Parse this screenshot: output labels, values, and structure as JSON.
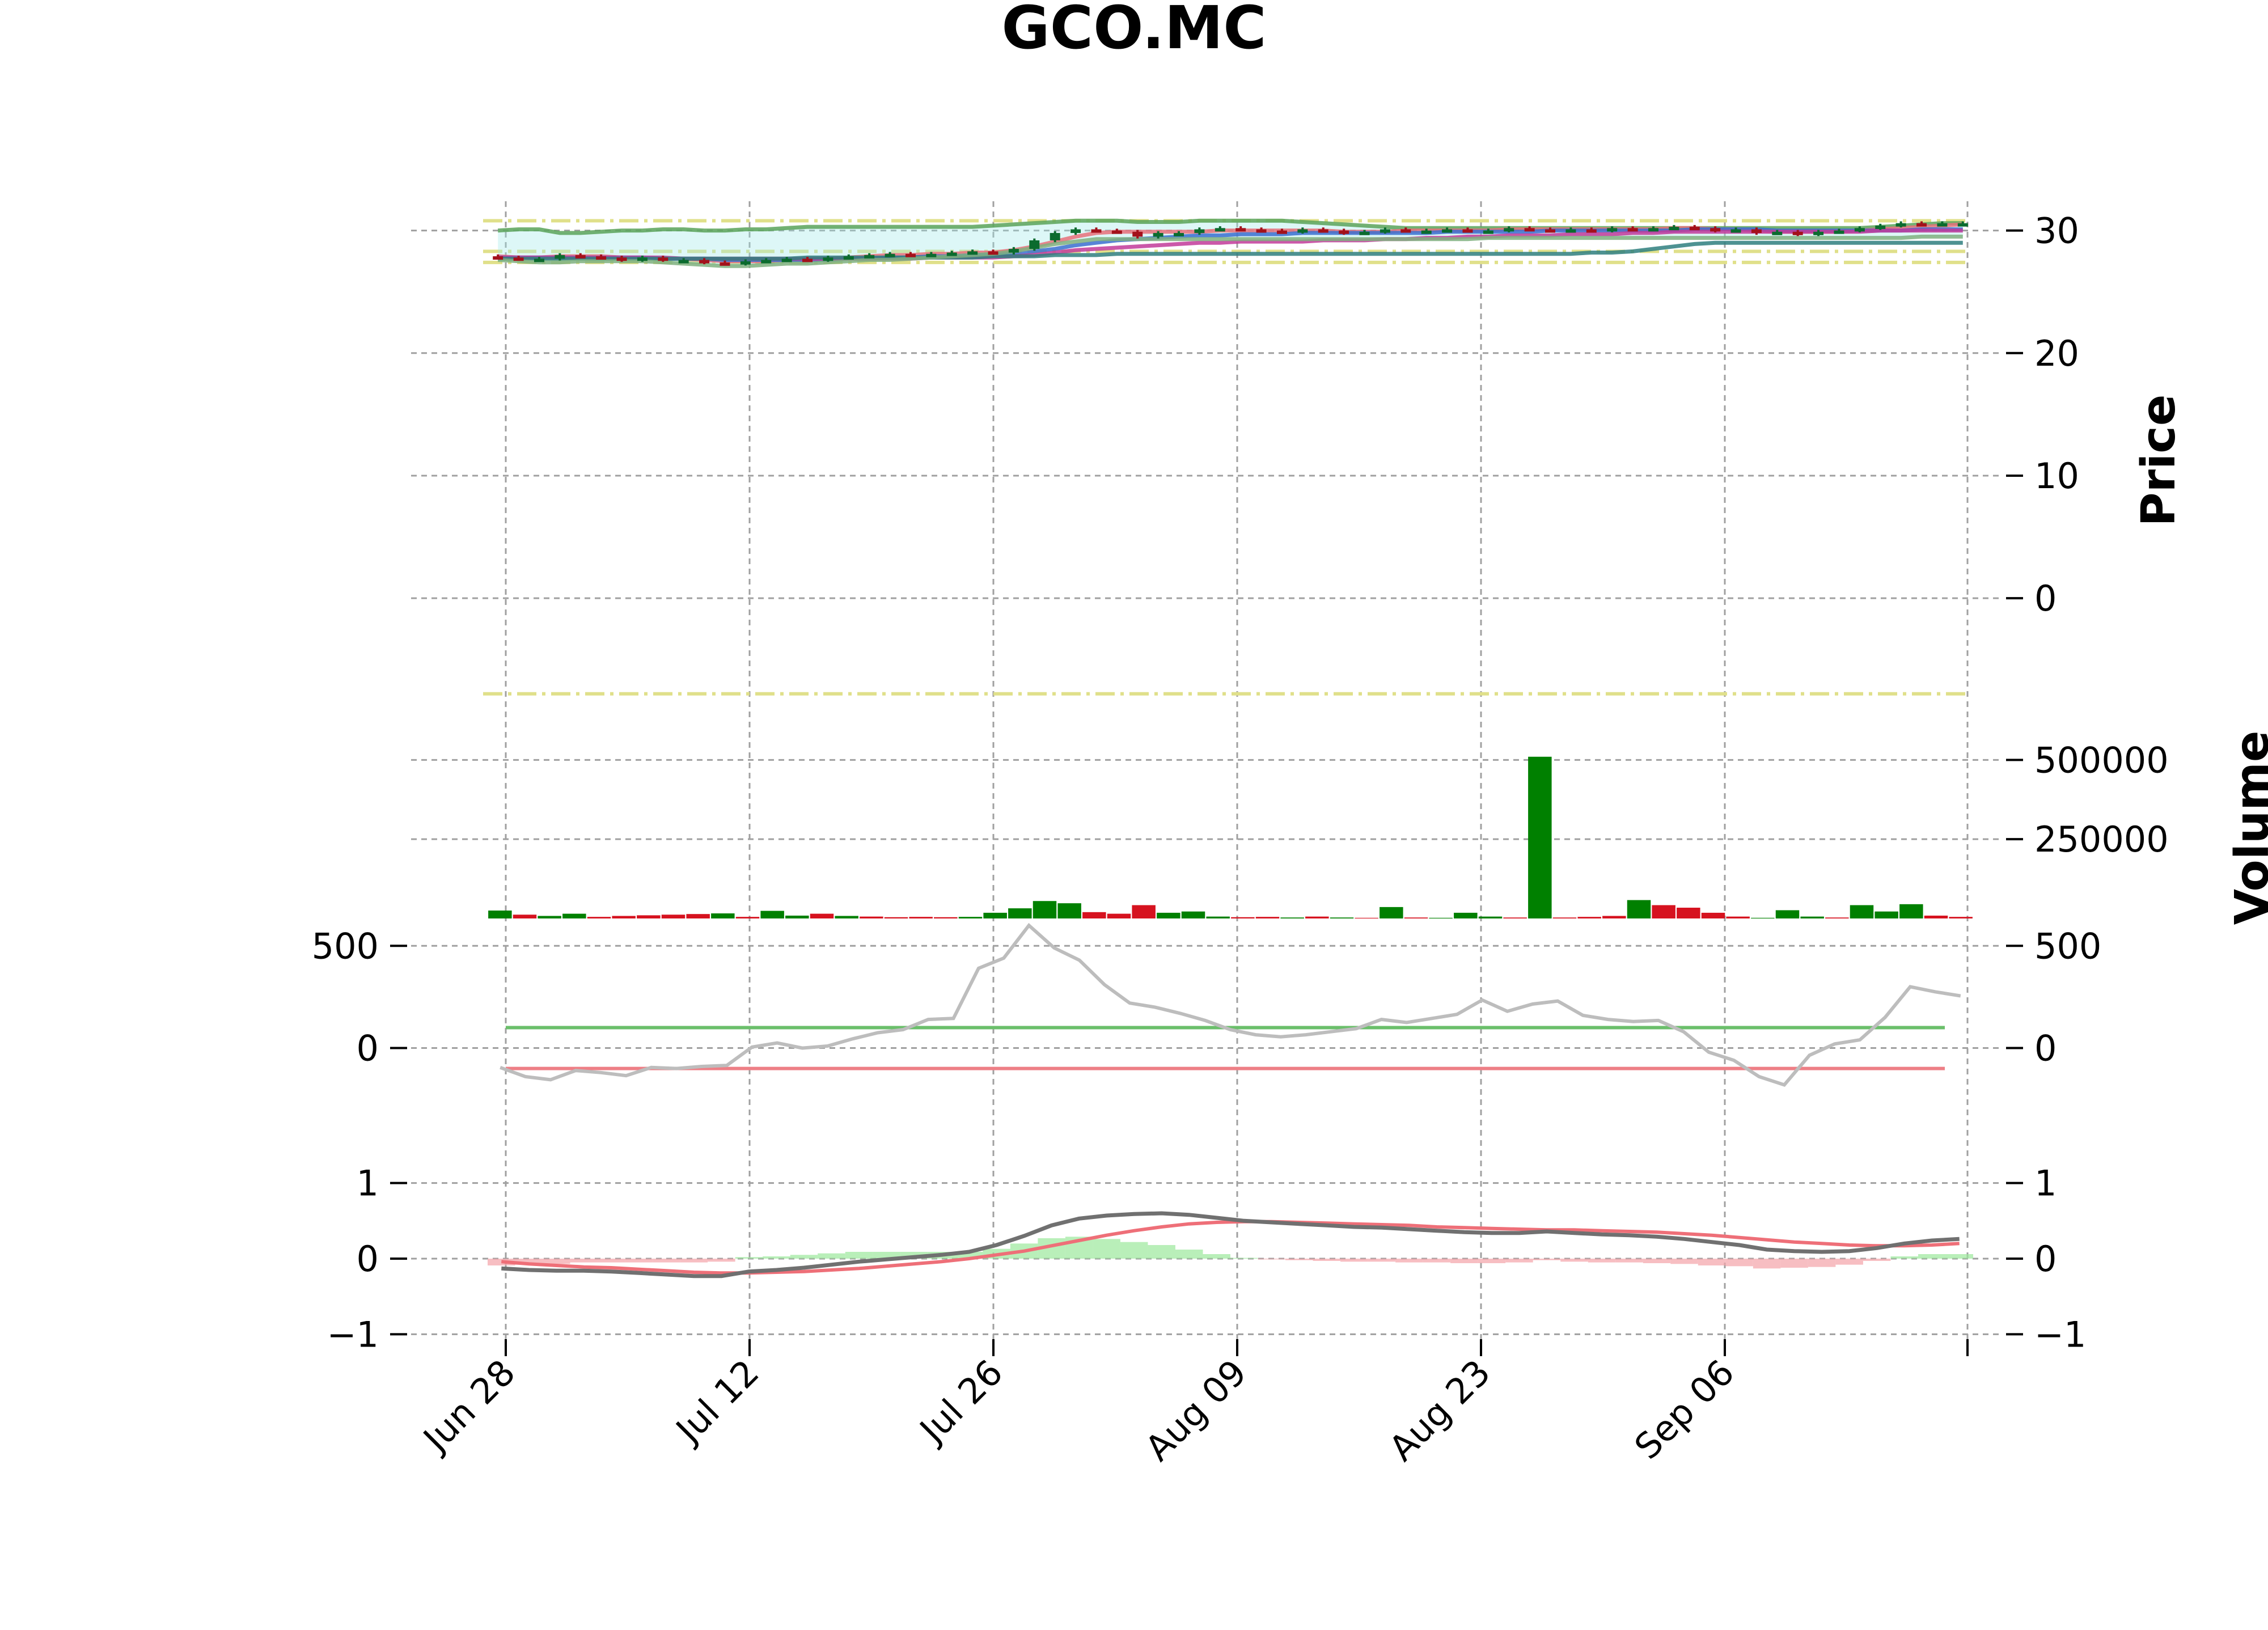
{
  "chart_data": {
    "type": "candlestick",
    "title": "GCO.MC",
    "x_tick_labels": [
      "Jun 28",
      "Jul 12",
      "Jul 26",
      "Aug 09",
      "Aug 23",
      "Sep 06"
    ],
    "price_panel": {
      "ylabel": "Price",
      "ylim": [
        -3,
        31
      ],
      "yticks": [
        0,
        10,
        20,
        30
      ],
      "close": [
        27.8,
        27.7,
        27.7,
        28.0,
        27.9,
        27.8,
        27.6,
        27.8,
        27.6,
        27.6,
        27.4,
        27.3,
        27.5,
        27.6,
        27.7,
        27.6,
        27.8,
        27.9,
        28.0,
        28.1,
        28.0,
        28.1,
        28.2,
        28.3,
        28.2,
        28.5,
        29.2,
        29.8,
        30.1,
        30.0,
        29.9,
        29.5,
        29.8,
        29.8,
        30.1,
        30.2,
        30.1,
        30.0,
        29.9,
        30.1,
        30.0,
        29.8,
        29.9,
        30.1,
        30.0,
        30.0,
        30.1,
        30.0,
        30.0,
        30.2,
        30.1,
        30.0,
        30.1,
        30.0,
        30.2,
        30.1,
        30.2,
        30.3,
        30.2,
        30.0,
        30.1,
        29.8,
        29.9,
        29.7,
        29.9,
        30.0,
        30.2,
        30.4,
        30.6,
        30.5,
        30.6,
        30.6
      ],
      "overlay_lines": [
        {
          "name": "upper-band",
          "color": "#5aa35a",
          "values": [
            30.0,
            30.1,
            30.1,
            29.8,
            29.8,
            29.9,
            30.0,
            30.0,
            30.1,
            30.1,
            30.0,
            30.0,
            30.1,
            30.1,
            30.2,
            30.3,
            30.3,
            30.3,
            30.3,
            30.3,
            30.3,
            30.3,
            30.3,
            30.3,
            30.4,
            30.5,
            30.6,
            30.7,
            30.8,
            30.8,
            30.8,
            30.7,
            30.7,
            30.7,
            30.8,
            30.8,
            30.8,
            30.8,
            30.8,
            30.7,
            30.6,
            30.5,
            30.4,
            30.3,
            30.2,
            30.2,
            30.2,
            30.2,
            30.2,
            30.2,
            30.2,
            30.2,
            30.2,
            30.2,
            30.2,
            30.2,
            30.2,
            30.2,
            30.2,
            30.2,
            30.2,
            30.2,
            30.2,
            30.2,
            30.2,
            30.2,
            30.2,
            30.3,
            30.4,
            30.5,
            30.6,
            30.6
          ]
        },
        {
          "name": "fast-ma",
          "color": "#e8707a",
          "values": [
            27.9,
            27.8,
            27.8,
            27.9,
            27.9,
            27.9,
            27.8,
            27.8,
            27.7,
            27.7,
            27.6,
            27.5,
            27.5,
            27.5,
            27.6,
            27.6,
            27.7,
            27.8,
            27.9,
            28.0,
            28.0,
            28.1,
            28.1,
            28.2,
            28.2,
            28.4,
            28.7,
            29.1,
            29.5,
            29.8,
            29.9,
            29.9,
            29.9,
            29.9,
            29.9,
            30.0,
            30.0,
            30.0,
            30.0,
            30.0,
            30.0,
            29.9,
            29.9,
            29.9,
            30.0,
            30.0,
            30.0,
            30.0,
            30.0,
            30.1,
            30.1,
            30.1,
            30.1,
            30.1,
            30.1,
            30.1,
            30.1,
            30.2,
            30.2,
            30.1,
            30.1,
            30.0,
            29.9,
            29.9,
            29.9,
            29.9,
            30.0,
            30.1,
            30.2,
            30.3,
            30.4,
            30.5
          ]
        },
        {
          "name": "mid-ma",
          "color": "#3a6fd0",
          "values": [
            27.8,
            27.8,
            27.8,
            27.8,
            27.8,
            27.8,
            27.8,
            27.8,
            27.7,
            27.7,
            27.7,
            27.6,
            27.6,
            27.6,
            27.6,
            27.6,
            27.6,
            27.7,
            27.7,
            27.8,
            27.8,
            27.9,
            27.9,
            28.0,
            28.0,
            28.1,
            28.3,
            28.5,
            28.8,
            29.0,
            29.2,
            29.3,
            29.4,
            29.5,
            29.6,
            29.6,
            29.7,
            29.7,
            29.7,
            29.8,
            29.8,
            29.8,
            29.8,
            29.8,
            29.8,
            29.8,
            29.9,
            29.9,
            29.9,
            29.9,
            29.9,
            30.0,
            30.0,
            30.0,
            30.0,
            30.0,
            30.0,
            30.0,
            30.1,
            30.1,
            30.1,
            30.1,
            30.0,
            30.0,
            30.0,
            30.0,
            30.0,
            30.0,
            30.0,
            30.1,
            30.1,
            30.1
          ]
        },
        {
          "name": "slow-ma",
          "color": "#c23b9a",
          "values": [
            27.8,
            27.8,
            27.8,
            27.8,
            27.8,
            27.8,
            27.8,
            27.8,
            27.8,
            27.7,
            27.7,
            27.7,
            27.7,
            27.7,
            27.7,
            27.7,
            27.7,
            27.7,
            27.7,
            27.7,
            27.7,
            27.8,
            27.8,
            27.8,
            27.8,
            27.9,
            28.0,
            28.2,
            28.4,
            28.5,
            28.6,
            28.7,
            28.8,
            28.9,
            29.0,
            29.0,
            29.1,
            29.1,
            29.1,
            29.1,
            29.2,
            29.2,
            29.2,
            29.3,
            29.3,
            29.4,
            29.4,
            29.5,
            29.5,
            29.6,
            29.6,
            29.6,
            29.7,
            29.7,
            29.7,
            29.8,
            29.8,
            29.9,
            29.9,
            29.9,
            29.9,
            29.9,
            29.9,
            29.9,
            29.9,
            29.9,
            29.9,
            30.0,
            30.0,
            30.0,
            30.0,
            30.0
          ]
        },
        {
          "name": "long-ma",
          "color": "#2f7f7f",
          "values": [
            27.7,
            27.7,
            27.7,
            27.7,
            27.7,
            27.7,
            27.7,
            27.7,
            27.7,
            27.7,
            27.7,
            27.7,
            27.7,
            27.7,
            27.7,
            27.8,
            27.8,
            27.8,
            27.8,
            27.8,
            27.8,
            27.8,
            27.8,
            27.8,
            27.9,
            27.9,
            27.9,
            28.0,
            28.0,
            28.0,
            28.1,
            28.1,
            28.1,
            28.1,
            28.1,
            28.1,
            28.1,
            28.1,
            28.1,
            28.1,
            28.1,
            28.1,
            28.1,
            28.1,
            28.1,
            28.1,
            28.1,
            28.1,
            28.1,
            28.1,
            28.1,
            28.1,
            28.1,
            28.2,
            28.2,
            28.3,
            28.5,
            28.7,
            28.9,
            29.0,
            29.0,
            29.0,
            29.0,
            29.0,
            29.0,
            29.0,
            29.0,
            29.0,
            29.0,
            29.0,
            29.0,
            29.0
          ]
        },
        {
          "name": "lower-band",
          "color": "#7fb07f",
          "values": [
            27.6,
            27.5,
            27.4,
            27.4,
            27.5,
            27.5,
            27.5,
            27.5,
            27.4,
            27.3,
            27.2,
            27.1,
            27.1,
            27.2,
            27.3,
            27.3,
            27.4,
            27.5,
            27.6,
            27.6,
            27.7,
            27.8,
            27.9,
            28.0,
            28.1,
            28.3,
            28.6,
            28.9,
            29.1,
            29.3,
            29.3,
            29.3,
            29.3,
            29.3,
            29.3,
            29.3,
            29.3,
            29.3,
            29.3,
            29.3,
            29.3,
            29.3,
            29.3,
            29.3,
            29.3,
            29.3,
            29.3,
            29.3,
            29.4,
            29.4,
            29.4,
            29.4,
            29.4,
            29.4,
            29.4,
            29.4,
            29.4,
            29.4,
            29.4,
            29.4,
            29.4,
            29.4,
            29.4,
            29.4,
            29.4,
            29.4,
            29.4,
            29.4,
            29.4,
            29.5,
            29.5,
            29.5
          ]
        }
      ],
      "horizontal_levels": [
        30.8,
        28.3,
        27.4,
        -7.8
      ]
    },
    "volume_panel": {
      "ylabel": "Volume",
      "yticks": [
        250000,
        500000
      ],
      "values": [
        25000,
        12000,
        8000,
        15000,
        5000,
        8000,
        10000,
        12000,
        14000,
        16000,
        5000,
        24000,
        9000,
        15000,
        8000,
        6000,
        4000,
        5000,
        4000,
        5000,
        18000,
        32000,
        55000,
        48000,
        20000,
        15000,
        42000,
        18000,
        22000,
        6000,
        4000,
        5000,
        3000,
        6000,
        3000,
        2000,
        36000,
        3000,
        2000,
        18000,
        6000,
        3000,
        510000,
        3000,
        5000,
        8000,
        58000,
        42000,
        34000,
        18000,
        6000,
        2000,
        26000,
        6000,
        3000,
        42000,
        22000,
        45000,
        9000,
        5000
      ],
      "up": [
        1,
        0,
        1,
        1,
        0,
        0,
        0,
        0,
        0,
        1,
        0,
        1,
        1,
        0,
        1,
        0,
        0,
        0,
        0,
        1,
        1,
        1,
        1,
        1,
        0,
        0,
        0,
        1,
        1,
        1,
        0,
        0,
        1,
        0,
        1,
        0,
        1,
        0,
        1,
        1,
        1,
        0,
        1,
        0,
        0,
        0,
        1,
        0,
        0,
        0,
        0,
        1,
        1,
        1,
        0,
        1,
        1,
        1,
        0,
        0
      ],
      "ylim": [
        0,
        590000
      ]
    },
    "cci_panel": {
      "ylim": [
        -420,
        620
      ],
      "yticks": [
        0,
        500
      ],
      "values": [
        -95,
        -140,
        -155,
        -110,
        -120,
        -135,
        -95,
        -100,
        -90,
        -85,
        5,
        25,
        0,
        10,
        45,
        75,
        90,
        140,
        145,
        390,
        440,
        600,
        490,
        430,
        310,
        220,
        200,
        170,
        135,
        90,
        65,
        55,
        65,
        80,
        95,
        140,
        125,
        145,
        165,
        235,
        180,
        215,
        230,
        160,
        140,
        130,
        135,
        80,
        -20,
        -60,
        -140,
        -180,
        -35,
        20,
        40,
        150,
        300,
        275,
        255
      ],
      "upper_level": 100,
      "lower_level": -100
    },
    "macd_panel": {
      "ylim": [
        -1.2,
        1.35
      ],
      "yticks": [
        -1,
        0,
        1
      ],
      "macd": [
        -0.13,
        -0.15,
        -0.16,
        -0.16,
        -0.17,
        -0.19,
        -0.21,
        -0.23,
        -0.23,
        -0.17,
        -0.15,
        -0.12,
        -0.08,
        -0.04,
        -0.01,
        0.02,
        0.05,
        0.09,
        0.18,
        0.3,
        0.44,
        0.53,
        0.57,
        0.59,
        0.6,
        0.58,
        0.54,
        0.5,
        0.48,
        0.46,
        0.44,
        0.42,
        0.41,
        0.39,
        0.37,
        0.35,
        0.34,
        0.34,
        0.36,
        0.34,
        0.32,
        0.31,
        0.29,
        0.26,
        0.22,
        0.18,
        0.12,
        0.1,
        0.09,
        0.1,
        0.14,
        0.2,
        0.24,
        0.26
      ],
      "signal": [
        -0.04,
        -0.07,
        -0.09,
        -0.11,
        -0.12,
        -0.14,
        -0.16,
        -0.18,
        -0.19,
        -0.19,
        -0.18,
        -0.17,
        -0.15,
        -0.13,
        -0.1,
        -0.07,
        -0.04,
        0.0,
        0.05,
        0.1,
        0.17,
        0.24,
        0.31,
        0.37,
        0.42,
        0.46,
        0.48,
        0.49,
        0.49,
        0.48,
        0.47,
        0.46,
        0.45,
        0.44,
        0.42,
        0.41,
        0.4,
        0.39,
        0.38,
        0.38,
        0.37,
        0.36,
        0.35,
        0.33,
        0.31,
        0.28,
        0.25,
        0.22,
        0.2,
        0.18,
        0.17,
        0.17,
        0.18,
        0.2
      ]
    }
  }
}
